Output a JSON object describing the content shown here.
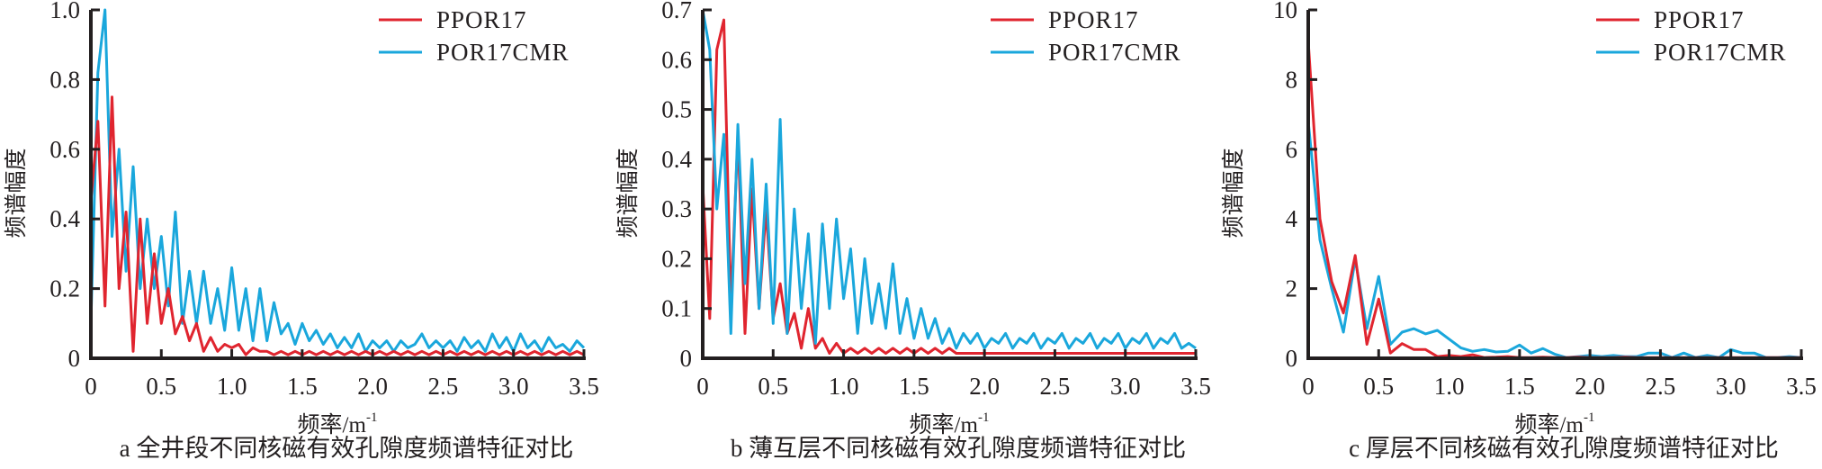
{
  "colors": {
    "PPOR17": "#e0252f",
    "POR17CMR": "#1aa7dc",
    "axis": "#231f20"
  },
  "chart_data": [
    {
      "type": "line",
      "caption": "a 全井段不同核磁有效孔隙度频谱特征对比",
      "xlabel": "频率/m",
      "xlabel_sup": "-1",
      "ylabel": "频谱幅度",
      "xlim": [
        0,
        3.5
      ],
      "ylim": [
        0,
        1.0
      ],
      "xticks": [
        "0",
        "0.5",
        "1.0",
        "1.5",
        "2.0",
        "2.5",
        "3.0",
        "3.5"
      ],
      "yticks": [
        "0",
        "0.2",
        "0.4",
        "0.6",
        "0.8",
        "1.0"
      ],
      "legend_position": "top-right",
      "x_start": 0,
      "x_step": 0.05,
      "series": [
        {
          "name": "PPOR17",
          "values": [
            0.45,
            0.68,
            0.15,
            0.75,
            0.2,
            0.42,
            0.02,
            0.4,
            0.1,
            0.3,
            0.1,
            0.2,
            0.07,
            0.12,
            0.05,
            0.1,
            0.02,
            0.06,
            0.02,
            0.04,
            0.03,
            0.04,
            0.01,
            0.03,
            0.02,
            0.02,
            0.01,
            0.02,
            0.01,
            0.02,
            0.01,
            0.02,
            0.01,
            0.02,
            0.01,
            0.02,
            0.01,
            0.02,
            0.01,
            0.02,
            0.01,
            0.02,
            0.01,
            0.02,
            0.01,
            0.02,
            0.01,
            0.02,
            0.01,
            0.02,
            0.01,
            0.02,
            0.01,
            0.02,
            0.01,
            0.02,
            0.01,
            0.02,
            0.01,
            0.02,
            0.01,
            0.02,
            0.01,
            0.02,
            0.01,
            0.02,
            0.01,
            0.02,
            0.01,
            0.02,
            0.01
          ]
        },
        {
          "name": "POR17CMR",
          "values": [
            0.1,
            0.82,
            1.0,
            0.35,
            0.6,
            0.25,
            0.55,
            0.2,
            0.4,
            0.2,
            0.35,
            0.15,
            0.42,
            0.1,
            0.25,
            0.1,
            0.25,
            0.1,
            0.2,
            0.08,
            0.26,
            0.08,
            0.2,
            0.05,
            0.2,
            0.05,
            0.16,
            0.07,
            0.1,
            0.04,
            0.1,
            0.05,
            0.08,
            0.04,
            0.07,
            0.03,
            0.06,
            0.03,
            0.07,
            0.02,
            0.05,
            0.03,
            0.05,
            0.02,
            0.05,
            0.03,
            0.04,
            0.07,
            0.03,
            0.05,
            0.03,
            0.05,
            0.02,
            0.06,
            0.03,
            0.05,
            0.02,
            0.07,
            0.03,
            0.06,
            0.02,
            0.07,
            0.03,
            0.05,
            0.02,
            0.06,
            0.03,
            0.04,
            0.02,
            0.05,
            0.03
          ]
        }
      ]
    },
    {
      "type": "line",
      "caption": "b 薄互层不同核磁有效孔隙度频谱特征对比",
      "xlabel": "频率/m",
      "xlabel_sup": "-1",
      "ylabel": "频谱幅度",
      "xlim": [
        0,
        3.5
      ],
      "ylim": [
        0,
        0.7
      ],
      "xticks": [
        "0",
        "0.5",
        "1.0",
        "1.5",
        "2.0",
        "2.5",
        "3.0",
        "3.5"
      ],
      "yticks": [
        "0",
        "0.1",
        "0.2",
        "0.3",
        "0.4",
        "0.5",
        "0.6",
        "0.7"
      ],
      "legend_position": "top-right",
      "x_start": 0,
      "x_step": 0.05,
      "series": [
        {
          "name": "PPOR17",
          "values": [
            0.35,
            0.08,
            0.62,
            0.68,
            0.1,
            0.45,
            0.05,
            0.34,
            0.1,
            0.3,
            0.08,
            0.15,
            0.05,
            0.09,
            0.02,
            0.1,
            0.02,
            0.04,
            0.01,
            0.03,
            0.01,
            0.02,
            0.01,
            0.02,
            0.01,
            0.02,
            0.01,
            0.02,
            0.01,
            0.02,
            0.01,
            0.02,
            0.01,
            0.02,
            0.01,
            0.02,
            0.01,
            0.01,
            0.01,
            0.01,
            0.01,
            0.01,
            0.01,
            0.01,
            0.01,
            0.01,
            0.01,
            0.01,
            0.01,
            0.01,
            0.01,
            0.01,
            0.01,
            0.01,
            0.01,
            0.01,
            0.01,
            0.01,
            0.01,
            0.01,
            0.01,
            0.01,
            0.01,
            0.01,
            0.01,
            0.01,
            0.01,
            0.01,
            0.01,
            0.01,
            0.01
          ]
        },
        {
          "name": "POR17CMR",
          "values": [
            0.7,
            0.62,
            0.3,
            0.45,
            0.05,
            0.47,
            0.15,
            0.4,
            0.1,
            0.35,
            0.07,
            0.48,
            0.05,
            0.3,
            0.1,
            0.25,
            0.03,
            0.27,
            0.1,
            0.28,
            0.12,
            0.22,
            0.05,
            0.2,
            0.07,
            0.15,
            0.06,
            0.19,
            0.05,
            0.12,
            0.04,
            0.1,
            0.04,
            0.08,
            0.03,
            0.06,
            0.02,
            0.05,
            0.03,
            0.05,
            0.02,
            0.04,
            0.03,
            0.05,
            0.02,
            0.04,
            0.03,
            0.05,
            0.02,
            0.04,
            0.03,
            0.05,
            0.02,
            0.04,
            0.03,
            0.05,
            0.02,
            0.04,
            0.03,
            0.05,
            0.02,
            0.04,
            0.03,
            0.05,
            0.02,
            0.04,
            0.03,
            0.05,
            0.02,
            0.03,
            0.02
          ]
        }
      ]
    },
    {
      "type": "line",
      "caption": "c 厚层不同核磁有效孔隙度频谱特征对比",
      "xlabel": "频率/m",
      "xlabel_sup": "-1",
      "ylabel": "频谱幅度",
      "xlim": [
        0,
        3.5
      ],
      "ylim": [
        0,
        10
      ],
      "xticks": [
        "0",
        "0.5",
        "1.0",
        "1.5",
        "2.0",
        "2.5",
        "3.0",
        "3.5"
      ],
      "yticks": [
        "0",
        "2",
        "4",
        "6",
        "8",
        "10"
      ],
      "legend_position": "top-right",
      "x_start": 0,
      "x_step": 0.0833,
      "series": [
        {
          "name": "PPOR17",
          "values": [
            9.1,
            4.0,
            2.2,
            1.3,
            2.95,
            0.4,
            1.7,
            0.15,
            0.42,
            0.25,
            0.25,
            0.05,
            0.08,
            0.05,
            0.1,
            0.02,
            0.03,
            0.05,
            0.02,
            0.02,
            0.03,
            0.02,
            0.02,
            0.03,
            0.02,
            0.02,
            0.02,
            0.03,
            0.02,
            0.02,
            0.02,
            0.02,
            0.02,
            0.02,
            0.02,
            0.02,
            0.02,
            0.02,
            0.02,
            0.02,
            0.02,
            0.02,
            0.02
          ]
        },
        {
          "name": "POR17CMR",
          "values": [
            6.8,
            3.4,
            2.0,
            0.75,
            2.85,
            0.85,
            2.35,
            0.4,
            0.75,
            0.85,
            0.7,
            0.8,
            0.55,
            0.3,
            0.2,
            0.25,
            0.18,
            0.2,
            0.38,
            0.15,
            0.28,
            0.12,
            0.02,
            0.05,
            0.08,
            0.05,
            0.08,
            0.05,
            0.05,
            0.15,
            0.15,
            0.02,
            0.15,
            0.02,
            0.08,
            0.02,
            0.25,
            0.15,
            0.15,
            0.02,
            0.02,
            0.05,
            0.02
          ]
        }
      ]
    }
  ]
}
